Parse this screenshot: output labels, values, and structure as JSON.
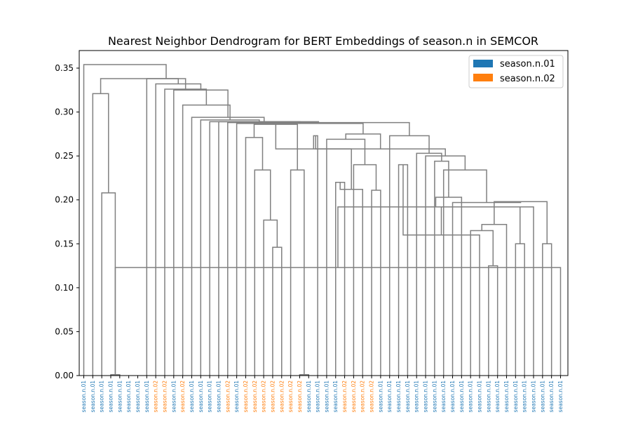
{
  "chart_data": {
    "type": "dendrogram",
    "title": "Nearest Neighbor Dendrogram for BERT Embeddings of season.n in SEMCOR",
    "xlabel": "",
    "ylabel": "",
    "ylim": [
      0,
      0.37
    ],
    "yticks": [
      "0.00",
      "0.05",
      "0.10",
      "0.15",
      "0.20",
      "0.25",
      "0.30",
      "0.35"
    ],
    "ytick_values": [
      0,
      0.05,
      0.1,
      0.15,
      0.2,
      0.25,
      0.3,
      0.35
    ],
    "grid": false,
    "legend_position": "top-right",
    "link_color": "#808080",
    "legend": [
      {
        "label": "season.n.01",
        "color": "#1f77b4"
      },
      {
        "label": "season.n.02",
        "color": "#ff7f0e"
      }
    ],
    "leaves": [
      {
        "label": "season.n.01",
        "sense": 0
      },
      {
        "label": "season.n.01",
        "sense": 0
      },
      {
        "label": "season.n.01",
        "sense": 0
      },
      {
        "label": "season.n.01",
        "sense": 0
      },
      {
        "label": "season.n.01",
        "sense": 0
      },
      {
        "label": "season.n.01",
        "sense": 0
      },
      {
        "label": "season.n.01",
        "sense": 0
      },
      {
        "label": "season.n.01",
        "sense": 0
      },
      {
        "label": "season.n.02",
        "sense": 1
      },
      {
        "label": "season.n.02",
        "sense": 1
      },
      {
        "label": "season.n.01",
        "sense": 0
      },
      {
        "label": "season.n.02",
        "sense": 1
      },
      {
        "label": "season.n.01",
        "sense": 0
      },
      {
        "label": "season.n.01",
        "sense": 0
      },
      {
        "label": "season.n.01",
        "sense": 0
      },
      {
        "label": "season.n.01",
        "sense": 0
      },
      {
        "label": "season.n.02",
        "sense": 1
      },
      {
        "label": "season.n.01",
        "sense": 0
      },
      {
        "label": "season.n.02",
        "sense": 1
      },
      {
        "label": "season.n.02",
        "sense": 1
      },
      {
        "label": "season.n.02",
        "sense": 1
      },
      {
        "label": "season.n.02",
        "sense": 1
      },
      {
        "label": "season.n.02",
        "sense": 1
      },
      {
        "label": "season.n.02",
        "sense": 1
      },
      {
        "label": "season.n.02",
        "sense": 1
      },
      {
        "label": "season.n.01",
        "sense": 0
      },
      {
        "label": "season.n.01",
        "sense": 0
      },
      {
        "label": "season.n.01",
        "sense": 0
      },
      {
        "label": "season.n.01",
        "sense": 0
      },
      {
        "label": "season.n.02",
        "sense": 1
      },
      {
        "label": "season.n.02",
        "sense": 1
      },
      {
        "label": "season.n.02",
        "sense": 1
      },
      {
        "label": "season.n.02",
        "sense": 1
      },
      {
        "label": "season.n.01",
        "sense": 0
      },
      {
        "label": "season.n.01",
        "sense": 0
      },
      {
        "label": "season.n.01",
        "sense": 0
      },
      {
        "label": "season.n.01",
        "sense": 0
      },
      {
        "label": "season.n.01",
        "sense": 0
      },
      {
        "label": "season.n.01",
        "sense": 0
      },
      {
        "label": "season.n.01",
        "sense": 0
      },
      {
        "label": "season.n.01",
        "sense": 0
      },
      {
        "label": "season.n.01",
        "sense": 0
      },
      {
        "label": "season.n.01",
        "sense": 0
      },
      {
        "label": "season.n.01",
        "sense": 0
      },
      {
        "label": "season.n.01",
        "sense": 0
      },
      {
        "label": "season.n.01",
        "sense": 0
      },
      {
        "label": "season.n.01",
        "sense": 0
      },
      {
        "label": "season.n.01",
        "sense": 0
      },
      {
        "label": "season.n.01",
        "sense": 0
      },
      {
        "label": "season.n.01",
        "sense": 0
      },
      {
        "label": "season.n.01",
        "sense": 0
      },
      {
        "label": "season.n.01",
        "sense": 0
      },
      {
        "label": "season.n.01",
        "sense": 0
      },
      {
        "label": "season.n.01",
        "sense": 0
      }
    ],
    "links": [
      {
        "a": 3,
        "b": 4,
        "height": 0.001
      },
      {
        "a": 2,
        "b": 54,
        "height": 0.208
      },
      {
        "a": 1,
        "b": 55,
        "height": 0.321
      },
      {
        "a": 21,
        "b": 22,
        "height": 0.146
      },
      {
        "a": 20,
        "b": 57,
        "height": 0.177
      },
      {
        "a": 19,
        "b": 58,
        "height": 0.234
      },
      {
        "a": 18,
        "b": 59,
        "height": 0.271
      },
      {
        "a": 24,
        "b": 25,
        "height": 0.001
      },
      {
        "a": 23,
        "b": 61,
        "height": 0.234
      },
      {
        "a": 60,
        "b": 62,
        "height": 0.286
      },
      {
        "a": 28,
        "b": 29,
        "height": 0.22
      },
      {
        "a": 32,
        "b": 33,
        "height": 0.211
      },
      {
        "a": 31,
        "b": 64,
        "height": 0.212
      },
      {
        "a": 30,
        "b": 65,
        "height": 0.24
      },
      {
        "a": 66,
        "b": 66,
        "height": 0.24
      },
      {
        "a": 67,
        "b": 67,
        "height": 0.24
      },
      {
        "a": 63,
        "b": 68,
        "height": 0.258
      },
      {
        "a": 27,
        "b": 69,
        "height": 0.269
      },
      {
        "a": 26,
        "b": 70,
        "height": 0.273
      },
      {
        "a": 35,
        "b": 36,
        "height": 0.24
      },
      {
        "a": 45,
        "b": 46,
        "height": 0.125
      },
      {
        "a": 44,
        "b": 73,
        "height": 0.16
      },
      {
        "a": 43,
        "b": 74,
        "height": 0.165
      },
      {
        "a": 48,
        "b": 49,
        "height": 0.15
      },
      {
        "a": 47,
        "b": 76,
        "height": 0.172
      },
      {
        "a": 75,
        "b": 77,
        "height": 0.192
      },
      {
        "a": 53,
        "b": 54,
        "height": 0.123
      },
      {
        "a": 51,
        "b": 52,
        "height": 0.15
      },
      {
        "a": 50,
        "b": 80,
        "height": 0.192
      },
      {
        "a": 78,
        "b": 81,
        "height": 0.198
      },
      {
        "a": 42,
        "b": 82,
        "height": 0.203
      },
      {
        "a": 41,
        "b": 83,
        "height": 0.197
      },
      {
        "a": 84,
        "b": 84,
        "height": 0.21
      },
      {
        "a": 40,
        "b": 85,
        "height": 0.234
      },
      {
        "a": 39,
        "b": 86,
        "height": 0.244
      },
      {
        "a": 38,
        "b": 87,
        "height": 0.25
      },
      {
        "a": 37,
        "b": 88,
        "height": 0.253
      },
      {
        "a": 72,
        "b": 89,
        "height": 0.258
      },
      {
        "a": 34,
        "b": 90,
        "height": 0.273
      },
      {
        "a": 71,
        "b": 91,
        "height": 0.275
      },
      {
        "a": 92,
        "b": 92,
        "height": 0.284
      },
      {
        "a": 93,
        "b": 93,
        "height": 0.285
      },
      {
        "a": 94,
        "b": 94,
        "height": 0.286
      },
      {
        "a": 17,
        "b": 95,
        "height": 0.287
      },
      {
        "a": 16,
        "b": 96,
        "height": 0.288
      },
      {
        "a": 15,
        "b": 97,
        "height": 0.289
      },
      {
        "a": 14,
        "b": 98,
        "height": 0.289
      },
      {
        "a": 13,
        "b": 99,
        "height": 0.291
      },
      {
        "a": 12,
        "b": 100,
        "height": 0.294
      },
      {
        "a": 11,
        "b": 101,
        "height": 0.308
      },
      {
        "a": 10,
        "b": 102,
        "height": 0.325
      },
      {
        "a": 9,
        "b": 103,
        "height": 0.326
      },
      {
        "a": 8,
        "b": 104,
        "height": 0.332
      },
      {
        "a": 7,
        "b": 105,
        "height": 0.338
      },
      {
        "a": 56,
        "b": 106,
        "height": 0.338
      },
      {
        "a": 0,
        "b": 107,
        "height": 0.354
      }
    ]
  }
}
